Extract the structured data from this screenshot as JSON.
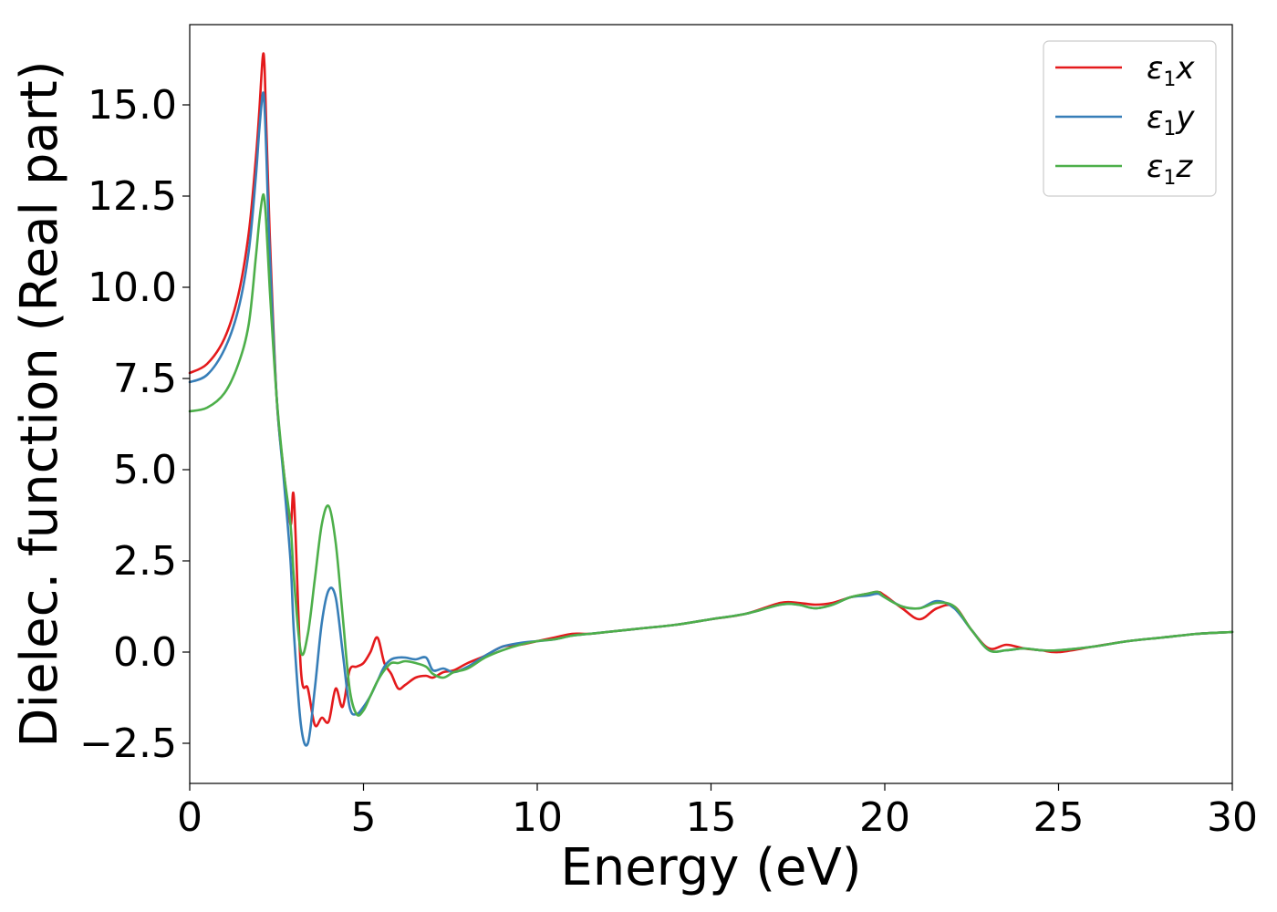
{
  "chart_data": {
    "type": "line",
    "title": "",
    "xlabel": "Energy (eV)",
    "ylabel": "Dielec. function (Real part)",
    "xlim": [
      0,
      30
    ],
    "ylim": [
      -3.6,
      17.2
    ],
    "xticks": [
      0,
      5,
      10,
      15,
      20,
      25,
      30
    ],
    "xtick_labels": [
      "0",
      "5",
      "10",
      "15",
      "20",
      "25",
      "30"
    ],
    "yticks": [
      -2.5,
      0.0,
      2.5,
      5.0,
      7.5,
      10.0,
      12.5,
      15.0
    ],
    "ytick_labels": [
      "−2.5",
      "0.0",
      "2.5",
      "5.0",
      "7.5",
      "10.0",
      "12.5",
      "15.0"
    ],
    "grid": false,
    "legend_position": "top-right",
    "series": [
      {
        "name": "ε₁x",
        "name_parts": {
          "symbol": "ε",
          "sub": "1",
          "suffix": "x"
        },
        "color": "#e41a1c",
        "x": [
          0,
          0.5,
          1.0,
          1.4,
          1.7,
          1.9,
          2.0,
          2.1,
          2.15,
          2.2,
          2.3,
          2.5,
          2.7,
          2.9,
          3.0,
          3.2,
          3.4,
          3.6,
          3.8,
          4.0,
          4.2,
          4.4,
          4.6,
          4.8,
          5.0,
          5.2,
          5.4,
          5.6,
          5.8,
          6.0,
          6.2,
          6.5,
          6.8,
          7.0,
          7.3,
          7.6,
          8.0,
          8.5,
          9.0,
          9.5,
          10.0,
          10.5,
          11.0,
          11.5,
          12.0,
          13.0,
          14.0,
          15.0,
          16.0,
          17.0,
          17.5,
          18.0,
          18.5,
          19.0,
          19.5,
          19.8,
          20.0,
          20.5,
          21.0,
          21.5,
          22.0,
          22.5,
          23.0,
          23.5,
          24.0,
          24.5,
          25.0,
          26.0,
          27.0,
          28.0,
          29.0,
          30.0
        ],
        "values": [
          7.65,
          7.9,
          8.6,
          9.8,
          11.5,
          13.5,
          14.8,
          16.3,
          16.1,
          14.5,
          11.5,
          7.0,
          5.0,
          3.5,
          4.2,
          -0.5,
          -1.0,
          -2.0,
          -1.8,
          -1.9,
          -1.0,
          -1.5,
          -0.5,
          -0.4,
          -0.3,
          0.0,
          0.4,
          -0.3,
          -0.6,
          -1.0,
          -0.9,
          -0.7,
          -0.65,
          -0.7,
          -0.55,
          -0.5,
          -0.3,
          -0.1,
          0.15,
          0.2,
          0.3,
          0.4,
          0.5,
          0.5,
          0.55,
          0.65,
          0.75,
          0.9,
          1.05,
          1.35,
          1.35,
          1.3,
          1.35,
          1.5,
          1.6,
          1.65,
          1.55,
          1.2,
          0.9,
          1.2,
          1.25,
          0.6,
          0.1,
          0.2,
          0.1,
          0.05,
          0.0,
          0.15,
          0.3,
          0.4,
          0.5,
          0.55
        ]
      },
      {
        "name": "ε₁y",
        "name_parts": {
          "symbol": "ε",
          "sub": "1",
          "suffix": "y"
        },
        "color": "#377eb8",
        "x": [
          0,
          0.5,
          1.0,
          1.4,
          1.7,
          1.9,
          2.0,
          2.1,
          2.15,
          2.2,
          2.3,
          2.5,
          2.7,
          2.9,
          3.0,
          3.2,
          3.4,
          3.6,
          3.8,
          4.0,
          4.2,
          4.4,
          4.6,
          4.8,
          5.0,
          5.2,
          5.4,
          5.6,
          5.8,
          6.0,
          6.2,
          6.5,
          6.8,
          7.0,
          7.3,
          7.6,
          8.0,
          8.5,
          9.0,
          9.5,
          10.0,
          10.5,
          11.0,
          11.5,
          12.0,
          13.0,
          14.0,
          15.0,
          16.0,
          17.0,
          17.5,
          18.0,
          18.5,
          19.0,
          19.5,
          19.8,
          20.0,
          20.5,
          21.0,
          21.5,
          22.0,
          22.5,
          23.0,
          23.5,
          24.0,
          24.5,
          25.0,
          26.0,
          27.0,
          28.0,
          29.0,
          30.0
        ],
        "values": [
          7.4,
          7.6,
          8.3,
          9.4,
          11.0,
          13.0,
          14.3,
          15.3,
          15.0,
          13.8,
          11.0,
          7.0,
          4.8,
          2.5,
          0.5,
          -2.0,
          -2.5,
          -1.0,
          0.8,
          1.7,
          1.5,
          0.0,
          -1.5,
          -1.7,
          -1.5,
          -1.2,
          -0.8,
          -0.4,
          -0.2,
          -0.15,
          -0.15,
          -0.2,
          -0.15,
          -0.5,
          -0.45,
          -0.55,
          -0.4,
          -0.1,
          0.15,
          0.25,
          0.3,
          0.35,
          0.45,
          0.5,
          0.55,
          0.65,
          0.75,
          0.9,
          1.05,
          1.3,
          1.3,
          1.2,
          1.3,
          1.5,
          1.55,
          1.6,
          1.5,
          1.25,
          1.2,
          1.4,
          1.2,
          0.6,
          0.05,
          0.05,
          0.1,
          0.05,
          0.05,
          0.15,
          0.3,
          0.4,
          0.5,
          0.55
        ]
      },
      {
        "name": "ε₁z",
        "name_parts": {
          "symbol": "ε",
          "sub": "1",
          "suffix": "z"
        },
        "color": "#4daf4a",
        "x": [
          0,
          0.5,
          1.0,
          1.4,
          1.7,
          1.9,
          2.0,
          2.1,
          2.15,
          2.2,
          2.3,
          2.5,
          2.7,
          2.9,
          3.0,
          3.2,
          3.4,
          3.6,
          3.8,
          4.0,
          4.2,
          4.4,
          4.6,
          4.8,
          5.0,
          5.2,
          5.4,
          5.6,
          5.8,
          6.0,
          6.2,
          6.5,
          6.8,
          7.0,
          7.3,
          7.6,
          8.0,
          8.5,
          9.0,
          9.5,
          10.0,
          10.5,
          11.0,
          11.5,
          12.0,
          13.0,
          14.0,
          15.0,
          16.0,
          17.0,
          17.5,
          18.0,
          18.5,
          19.0,
          19.5,
          19.8,
          20.0,
          20.5,
          21.0,
          21.5,
          22.0,
          22.5,
          23.0,
          23.5,
          24.0,
          24.5,
          25.0,
          26.0,
          27.0,
          28.0,
          29.0,
          30.0
        ],
        "values": [
          6.6,
          6.7,
          7.1,
          7.9,
          9.0,
          10.8,
          11.8,
          12.5,
          12.4,
          11.8,
          10.0,
          7.0,
          5.0,
          3.5,
          2.0,
          0.0,
          0.5,
          2.0,
          3.5,
          4.0,
          3.0,
          1.0,
          -1.0,
          -1.7,
          -1.6,
          -1.2,
          -0.8,
          -0.5,
          -0.3,
          -0.3,
          -0.25,
          -0.3,
          -0.4,
          -0.6,
          -0.7,
          -0.55,
          -0.45,
          -0.15,
          0.05,
          0.2,
          0.3,
          0.35,
          0.45,
          0.5,
          0.55,
          0.65,
          0.75,
          0.9,
          1.05,
          1.3,
          1.3,
          1.2,
          1.3,
          1.5,
          1.6,
          1.65,
          1.5,
          1.25,
          1.2,
          1.35,
          1.25,
          0.6,
          0.05,
          0.05,
          0.1,
          0.05,
          0.05,
          0.15,
          0.3,
          0.4,
          0.5,
          0.55
        ]
      }
    ]
  }
}
